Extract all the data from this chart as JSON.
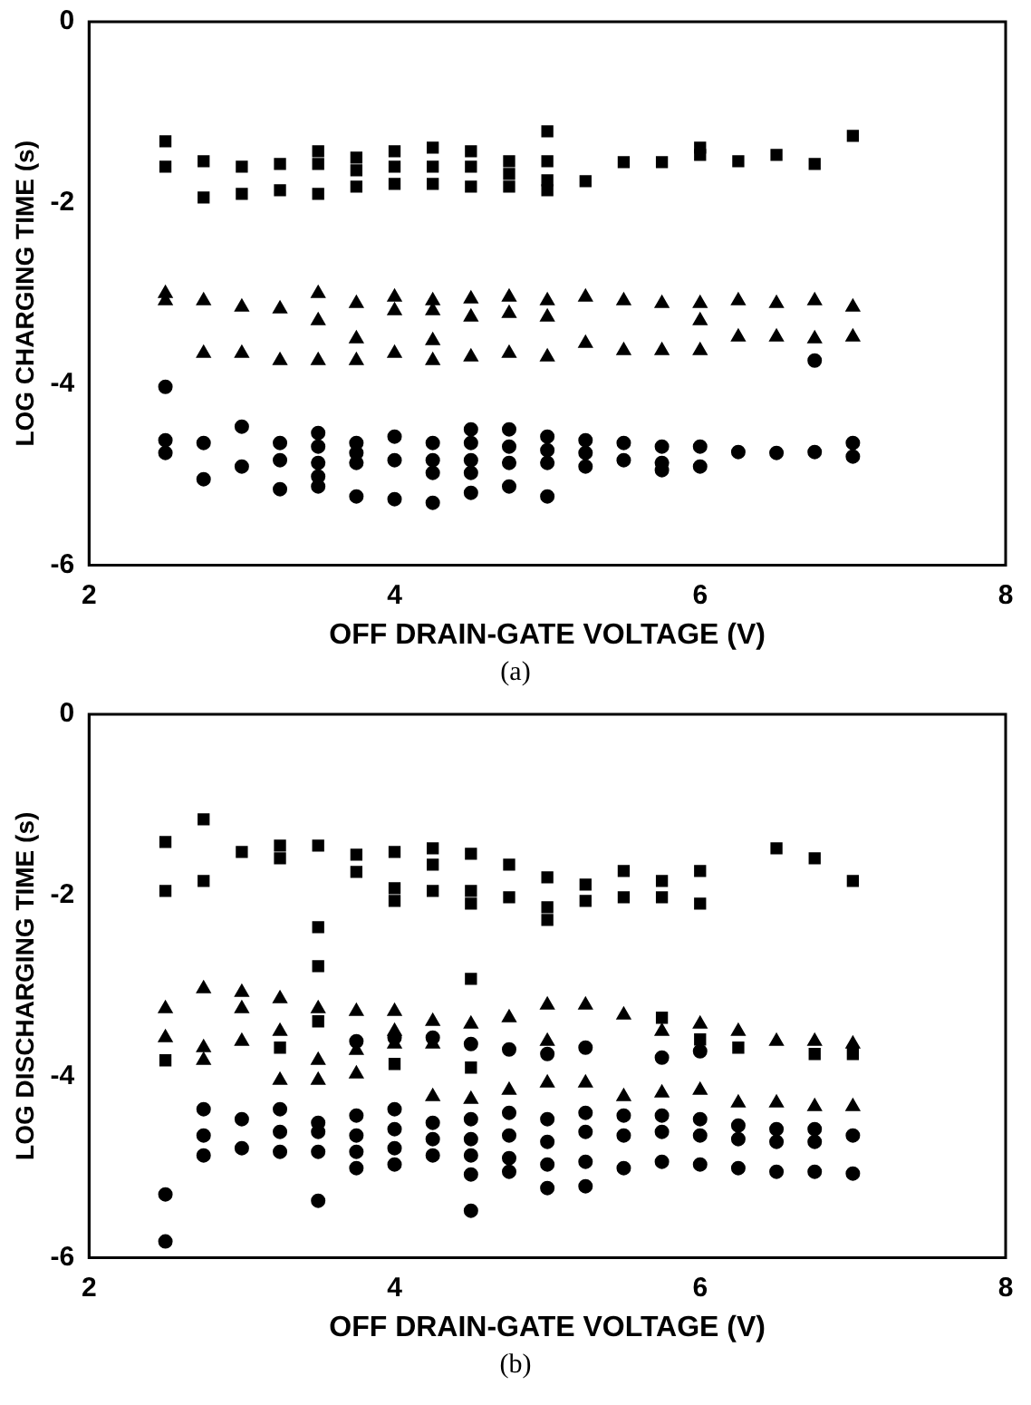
{
  "chart_data": [
    {
      "type": "scatter",
      "xlabel": "OFF DRAIN-GATE VOLTAGE (V)",
      "ylabel": "LOG CHARGING TIME (s)",
      "annotations": [
        "(a)"
      ],
      "xlim": [
        2,
        8
      ],
      "xticks": [
        2,
        4,
        6,
        8
      ],
      "ylim": [
        -6,
        0
      ],
      "yticks": [
        -6,
        -4,
        -2,
        0
      ],
      "grid": false,
      "legend": false,
      "series": [
        {
          "color": "#000000",
          "marker": "square",
          "x": [
            2.5,
            2.5,
            2.75,
            2.75,
            3,
            3,
            3.25,
            3.25,
            3.5,
            3.5,
            3.5,
            3.75,
            3.75,
            3.75,
            4,
            4,
            4,
            4.25,
            4.25,
            4.25,
            4.5,
            4.5,
            4.5,
            4.75,
            4.75,
            4.75,
            5,
            5,
            5,
            5,
            5.25,
            5.5,
            5.75,
            6,
            6,
            6.25,
            6.5,
            6.75,
            7
          ],
          "values": [
            -1.32,
            -1.6,
            -1.54,
            -1.94,
            -1.6,
            -1.9,
            -1.57,
            -1.86,
            -1.43,
            -1.57,
            -1.9,
            -1.5,
            -1.64,
            -1.82,
            -1.43,
            -1.6,
            -1.79,
            -1.39,
            -1.6,
            -1.79,
            -1.43,
            -1.6,
            -1.82,
            -1.54,
            -1.68,
            -1.82,
            -1.21,
            -1.54,
            -1.75,
            -1.86,
            -1.76,
            -1.55,
            -1.55,
            -1.39,
            -1.47,
            -1.54,
            -1.47,
            -1.57,
            -1.26
          ]
        },
        {
          "color": "#000000",
          "marker": "triangle",
          "x": [
            2.5,
            2.5,
            2.75,
            2.75,
            3,
            3,
            3.25,
            3.25,
            3.5,
            3.5,
            3.5,
            3.75,
            3.75,
            3.75,
            4,
            4,
            4,
            4.25,
            4.25,
            4.25,
            4.25,
            4.5,
            4.5,
            4.5,
            4.75,
            4.75,
            4.75,
            5,
            5,
            5,
            5.25,
            5.25,
            5.5,
            5.5,
            5.75,
            5.75,
            6,
            6,
            6,
            6.25,
            6.25,
            6.5,
            6.5,
            6.75,
            6.75,
            7,
            7
          ],
          "values": [
            -3.0,
            -3.08,
            -3.08,
            -3.66,
            -3.15,
            -3.66,
            -3.17,
            -3.74,
            -3.0,
            -3.3,
            -3.74,
            -3.11,
            -3.5,
            -3.74,
            -3.04,
            -3.19,
            -3.66,
            -3.08,
            -3.19,
            -3.52,
            -3.74,
            -3.06,
            -3.26,
            -3.7,
            -3.04,
            -3.22,
            -3.66,
            -3.08,
            -3.26,
            -3.7,
            -3.04,
            -3.55,
            -3.08,
            -3.63,
            -3.11,
            -3.63,
            -3.11,
            -3.3,
            -3.63,
            -3.08,
            -3.48,
            -3.11,
            -3.48,
            -3.08,
            -3.5,
            -3.15,
            -3.48
          ]
        },
        {
          "color": "#000000",
          "marker": "circle",
          "x": [
            2.5,
            2.5,
            2.5,
            2.75,
            2.75,
            3,
            3,
            3.25,
            3.25,
            3.25,
            3.5,
            3.5,
            3.5,
            3.5,
            3.5,
            3.75,
            3.75,
            3.75,
            3.75,
            4,
            4,
            4,
            4.25,
            4.25,
            4.25,
            4.25,
            4.5,
            4.5,
            4.5,
            4.5,
            4.5,
            4.75,
            4.75,
            4.75,
            4.75,
            5,
            5,
            5,
            5,
            5.25,
            5.25,
            5.25,
            5.5,
            5.5,
            5.75,
            5.75,
            5.75,
            6,
            6,
            6.25,
            6.5,
            6.75,
            6.75,
            7,
            7
          ],
          "values": [
            -4.03,
            -4.62,
            -4.76,
            -4.65,
            -5.05,
            -4.47,
            -4.91,
            -4.65,
            -4.84,
            -5.16,
            -4.54,
            -4.69,
            -4.87,
            -5.02,
            -5.13,
            -4.65,
            -4.76,
            -4.87,
            -5.24,
            -4.58,
            -4.84,
            -5.27,
            -4.65,
            -4.84,
            -4.98,
            -5.31,
            -4.5,
            -4.65,
            -4.84,
            -4.98,
            -5.2,
            -4.5,
            -4.69,
            -4.87,
            -5.13,
            -4.58,
            -4.73,
            -4.87,
            -5.24,
            -4.62,
            -4.76,
            -4.91,
            -4.65,
            -4.84,
            -4.69,
            -4.87,
            -4.95,
            -4.69,
            -4.91,
            -4.75,
            -4.76,
            -3.74,
            -4.75,
            -4.65,
            -4.8
          ]
        }
      ]
    },
    {
      "type": "scatter",
      "xlabel": "OFF DRAIN-GATE VOLTAGE (V)",
      "ylabel": "LOG DISCHARGING TIME (s)",
      "annotations": [
        "(b)"
      ],
      "xlim": [
        2,
        8
      ],
      "xticks": [
        2,
        4,
        6,
        8
      ],
      "ylim": [
        -6,
        0
      ],
      "yticks": [
        -6,
        -4,
        -2,
        0
      ],
      "grid": false,
      "legend": false,
      "series": [
        {
          "color": "#000000",
          "marker": "square",
          "x": [
            2.5,
            2.5,
            2.5,
            2.75,
            2.75,
            3,
            3.25,
            3.25,
            3.25,
            3.5,
            3.5,
            3.5,
            3.5,
            3.75,
            3.75,
            4,
            4,
            4,
            4,
            4.25,
            4.25,
            4.25,
            4.5,
            4.5,
            4.5,
            4.5,
            4.5,
            4.75,
            4.75,
            5,
            5,
            5,
            5.25,
            5.25,
            5.5,
            5.5,
            5.75,
            5.75,
            5.75,
            6,
            6,
            6,
            6.25,
            6.5,
            6.75,
            6.75,
            7,
            7
          ],
          "values": [
            -1.41,
            -1.95,
            -3.82,
            -1.16,
            -1.84,
            -1.52,
            -1.45,
            -1.59,
            -3.68,
            -1.45,
            -2.35,
            -2.78,
            -3.39,
            -1.55,
            -1.74,
            -1.52,
            -1.92,
            -2.06,
            -3.86,
            -1.48,
            -1.66,
            -1.95,
            -1.54,
            -1.95,
            -2.09,
            -2.92,
            -3.9,
            -1.66,
            -2.02,
            -1.8,
            -2.13,
            -2.27,
            -1.88,
            -2.06,
            -1.73,
            -2.02,
            -1.84,
            -2.02,
            -3.35,
            -1.73,
            -2.09,
            -3.59,
            -3.68,
            -1.48,
            -1.59,
            -3.75,
            -1.84,
            -3.75
          ]
        },
        {
          "color": "#000000",
          "marker": "triangle",
          "x": [
            2.5,
            2.5,
            2.75,
            2.75,
            2.75,
            3,
            3,
            3,
            3.25,
            3.25,
            3.25,
            3.5,
            3.5,
            3.5,
            3.75,
            3.75,
            3.75,
            4,
            4,
            4,
            4.25,
            4.25,
            4.25,
            4.5,
            4.5,
            4.75,
            4.75,
            5,
            5,
            5,
            5.25,
            5.25,
            5.5,
            5.5,
            5.75,
            5.75,
            6,
            6,
            6.25,
            6.25,
            6.5,
            6.5,
            6.75,
            6.75,
            7,
            7
          ],
          "values": [
            -3.25,
            -3.57,
            -3.03,
            -3.68,
            -3.82,
            -3.07,
            -3.25,
            -3.61,
            -3.14,
            -3.5,
            -4.04,
            -3.25,
            -3.82,
            -4.04,
            -3.28,
            -3.71,
            -3.97,
            -3.28,
            -3.5,
            -3.64,
            -3.39,
            -3.64,
            -4.22,
            -3.42,
            -4.25,
            -3.35,
            -4.15,
            -3.21,
            -3.61,
            -4.07,
            -3.21,
            -4.07,
            -3.32,
            -4.22,
            -3.5,
            -4.18,
            -3.42,
            -4.15,
            -3.5,
            -4.29,
            -3.61,
            -4.29,
            -3.61,
            -4.33,
            -3.64,
            -4.33
          ]
        },
        {
          "color": "#000000",
          "marker": "circle",
          "x": [
            2.5,
            2.5,
            2.75,
            2.75,
            2.75,
            3,
            3,
            3.25,
            3.25,
            3.25,
            3.5,
            3.5,
            3.5,
            3.5,
            3.75,
            3.75,
            3.75,
            3.75,
            3.75,
            4,
            4,
            4,
            4,
            4,
            4.25,
            4.25,
            4.25,
            4.25,
            4.5,
            4.5,
            4.5,
            4.5,
            4.5,
            4.5,
            4.75,
            4.75,
            4.75,
            4.75,
            4.75,
            5,
            5,
            5,
            5,
            5,
            5.25,
            5.25,
            5.25,
            5.25,
            5.25,
            5.5,
            5.5,
            5.5,
            5.75,
            5.75,
            5.75,
            5.75,
            6,
            6,
            6,
            6,
            6.25,
            6.25,
            6.25,
            6.5,
            6.5,
            6.5,
            6.75,
            6.75,
            6.75,
            7,
            7
          ],
          "values": [
            -5.3,
            -5.82,
            -4.36,
            -4.65,
            -4.87,
            -4.47,
            -4.79,
            -4.36,
            -4.61,
            -4.83,
            -4.51,
            -4.61,
            -4.83,
            -5.37,
            -3.61,
            -4.43,
            -4.65,
            -4.83,
            -5.01,
            -3.57,
            -4.36,
            -4.58,
            -4.79,
            -4.97,
            -3.57,
            -4.51,
            -4.69,
            -4.87,
            -3.64,
            -4.47,
            -4.69,
            -4.87,
            -5.08,
            -5.48,
            -3.7,
            -4.4,
            -4.65,
            -4.9,
            -5.05,
            -3.75,
            -4.47,
            -4.72,
            -4.97,
            -5.23,
            -3.68,
            -4.4,
            -4.61,
            -4.94,
            -5.21,
            -4.43,
            -4.65,
            -5.01,
            -3.79,
            -4.43,
            -4.61,
            -4.94,
            -3.72,
            -4.47,
            -4.65,
            -4.97,
            -4.54,
            -4.69,
            -5.01,
            -4.58,
            -4.72,
            -5.05,
            -4.58,
            -4.72,
            -5.05,
            -4.65,
            -5.07
          ]
        }
      ]
    }
  ]
}
